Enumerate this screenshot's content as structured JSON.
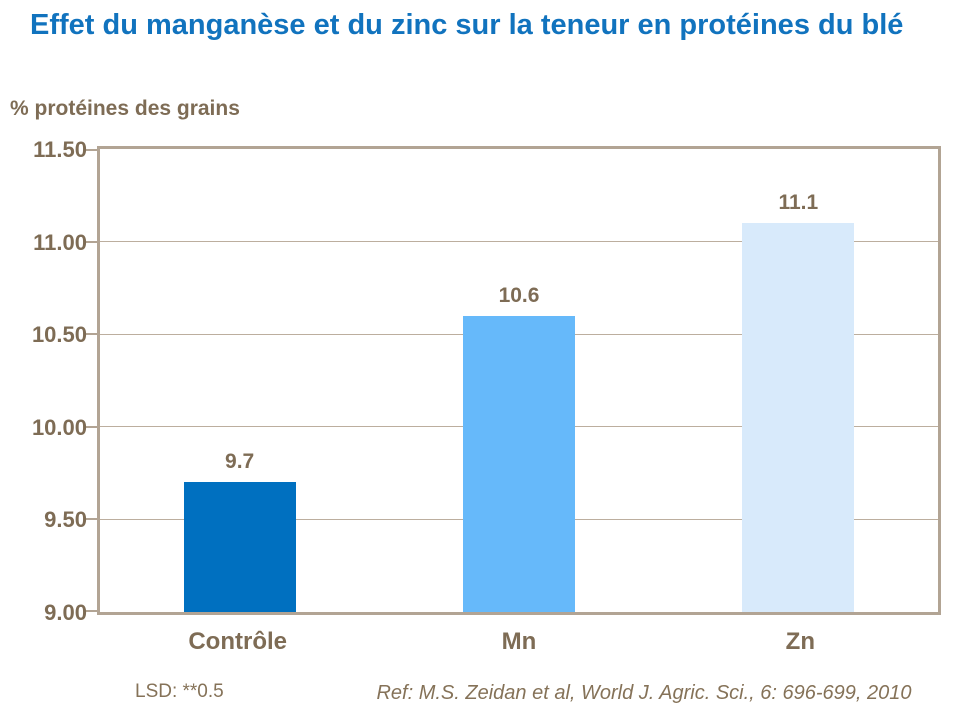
{
  "title": "Effet du manganèse et du zinc sur la teneur en protéines du blé",
  "footer": {
    "lsd": "LSD: **0.5",
    "ref": "Ref: M.S. Zeidan et al, World J. Agric. Sci., 6: 696-699, 2010"
  },
  "colors": {
    "title_blue": "#1173BE",
    "text_brown": "#7E6C55",
    "note_brown": "#857258",
    "plot_border": "#B2A494",
    "gridline": "#BCAE9E"
  },
  "chart_data": {
    "type": "bar",
    "title": "Effet du manganèse et du zinc sur la teneur en protéines du blé",
    "categories": [
      "Contrôle",
      "Mn",
      "Zn"
    ],
    "values": [
      9.7,
      10.6,
      11.1
    ],
    "value_labels": [
      "9.7",
      "10.6",
      "11.1"
    ],
    "bar_colors": [
      "#0070C0",
      "#66B9FA",
      "#D8EAFB"
    ],
    "xlabel": "",
    "ylabel": "% protéines des grains",
    "ylim": [
      9.0,
      11.5
    ],
    "yticks": [
      "11.50",
      "11.00",
      "10.50",
      "10.00",
      "9.50",
      "9.00"
    ],
    "grid": true,
    "legend": false,
    "annotations": [
      "LSD: **0.5",
      "Ref: M.S. Zeidan et al, World J. Agric. Sci., 6: 696-699, 2010"
    ]
  }
}
